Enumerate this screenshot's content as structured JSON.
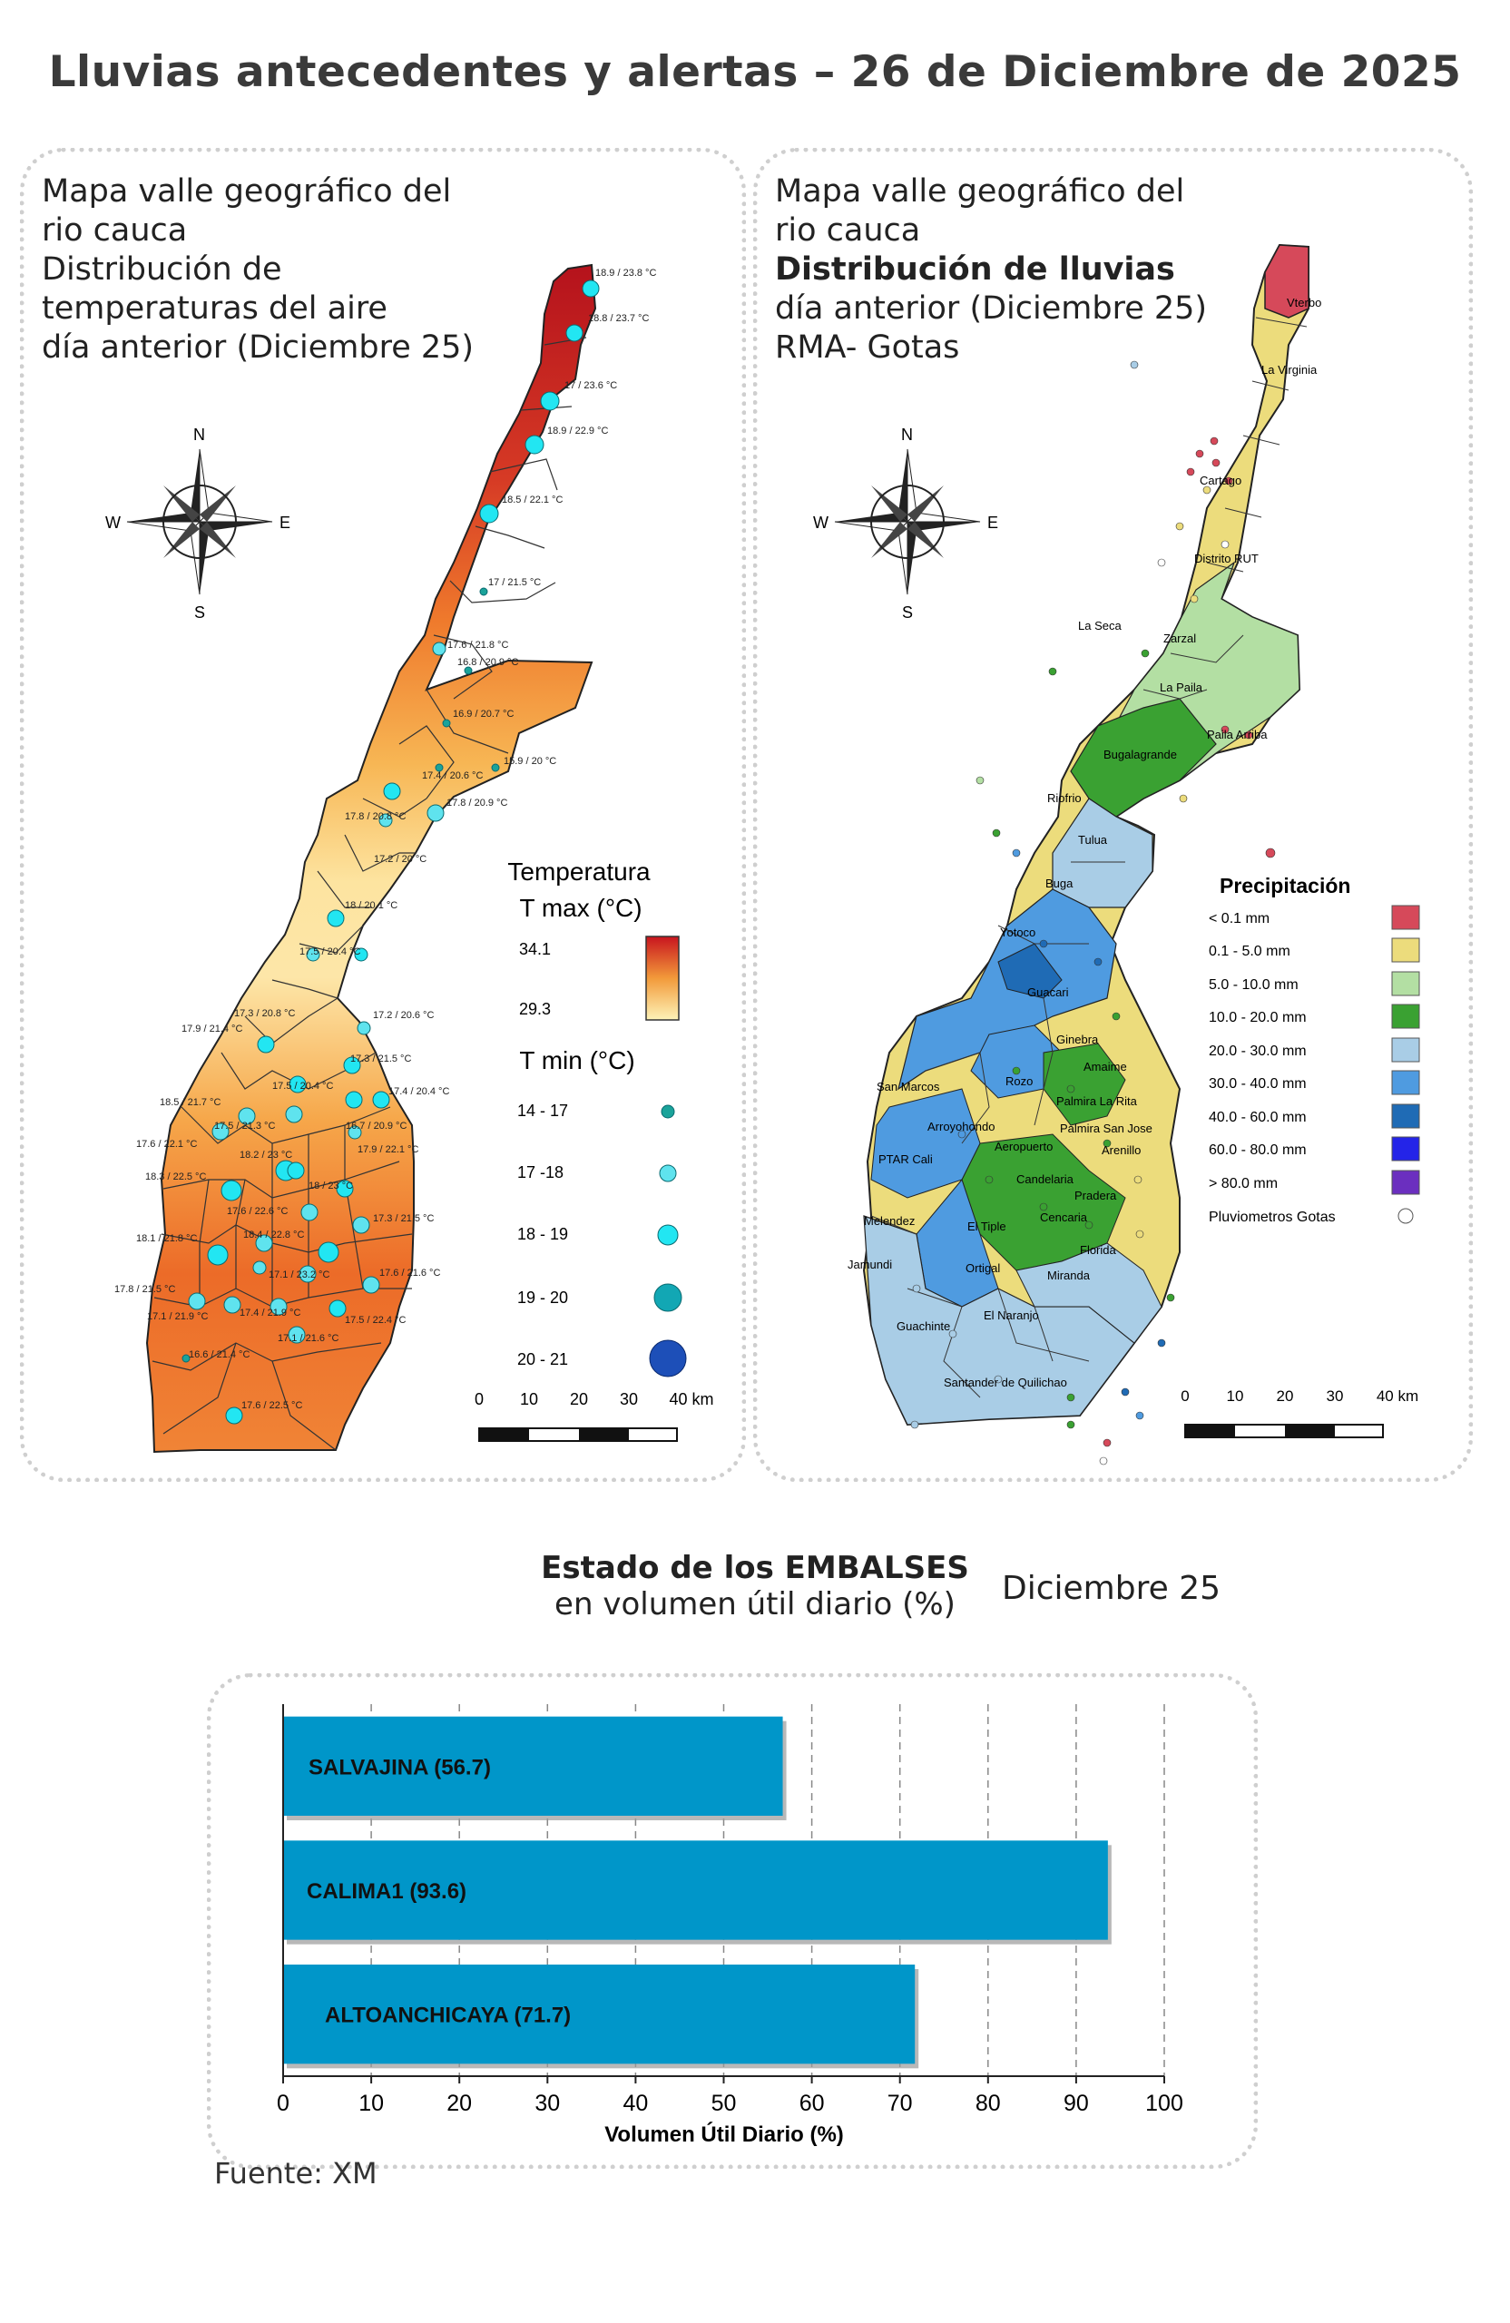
{
  "title": "Lluvias antecedentes y alertas – 26 de Diciembre de 2025",
  "temp_panel": {
    "lines": [
      "Mapa valle geográfico del",
      "rio cauca",
      "Distribución de",
      "temperaturas del aire",
      "día anterior (Diciembre 25)"
    ],
    "legend_title1": "Temperatura",
    "legend_title2": "T max (°C)",
    "tmax_high": "34.1",
    "tmax_low": "29.3",
    "tmin_title": "T min (°C)",
    "tmin_classes": [
      {
        "label": "14 - 17",
        "color": "#1aa39a"
      },
      {
        "label": "17 -18",
        "color": "#5fe3ee"
      },
      {
        "label": "18 - 19",
        "color": "#22e6f2"
      },
      {
        "label": "19 - 20",
        "color": "#12a7b4"
      },
      {
        "label": "20 - 21",
        "color": "#1d4fb8"
      }
    ],
    "scale_labels": [
      "0",
      "10",
      "20",
      "30",
      "40 km"
    ],
    "station_labels": [
      "18.9 / 23.8 °C",
      "18.8 / 23.7 °C",
      "17 / 23.6 °C",
      "18.9 / 22.9 °C",
      "18.5 / 22.1 °C",
      "17 / 21.5 °C",
      "17.6 / 21.8 °C",
      "16.8 / 20.9 °C",
      "16.9 / 20.7 °C",
      "15.9 / 20 °C",
      "17.4 / 20.6 °C",
      "17.8 / 20.9 °C",
      "17.8 / 20.8 °C",
      "17.2 / 20 °C",
      "18 / 20.1 °C",
      "17.5 / 20.4 °C",
      "17.3 / 20.8 °C",
      "17.9 / 21.4 °C",
      "17.2 / 20.6 °C",
      "17.3 / 21.5 °C",
      "17.5 / 20.4 °C",
      "17.4 / 20.4 °C",
      "18.5 / 21.7 °C",
      "17.5 / 21.3 °C",
      "16.7 / 20.9 °C",
      "17.6 / 22.1 °C",
      "18.2 / 23 °C",
      "17.9 / 22.1 °C",
      "18.3 / 22.5 °C",
      "18 / 23 °C",
      "17.6 / 22.6 °C",
      "17.3 / 21.5 °C",
      "18.1 / 21.8 °C",
      "18.4 / 22.8 °C",
      "17.6 / 21.6 °C",
      "17.1 / 23.2 °C",
      "17.8 / 21.5 °C",
      "17.4 / 21.9 °C",
      "17.5 / 22.4 °C",
      "17.1 / 21.9 °C",
      "17.1 / 21.6 °C",
      "16.6 / 21.4 °C",
      "17.6 / 22.5 °C"
    ]
  },
  "rain_panel": {
    "line1": "Mapa valle geográfico del",
    "line2": "rio cauca",
    "line3": "Distribución de lluvias",
    "line4": "día anterior (Diciembre 25)",
    "line5": "RMA- Gotas",
    "legend_title": "Precipitación",
    "classes": [
      {
        "label": "< 0.1 mm",
        "color": "#d6495a"
      },
      {
        "label": "0.1 - 5.0 mm",
        "color": "#ecdc7c"
      },
      {
        "label": "5.0 - 10.0 mm",
        "color": "#b3dfa3"
      },
      {
        "label": "10.0 - 20.0 mm",
        "color": "#3aa132"
      },
      {
        "label": "20.0 - 30.0 mm",
        "color": "#a9cde6"
      },
      {
        "label": "30.0 - 40.0 mm",
        "color": "#4f9be0"
      },
      {
        "label": "40.0 - 60.0 mm",
        "color": "#1f6bb5"
      },
      {
        "label": "60.0 - 80.0 mm",
        "color": "#2424e8"
      },
      {
        "label": "> 80.0 mm",
        "color": "#6b2fbf"
      }
    ],
    "gauges_label": "Pluviometros Gotas",
    "scale_labels": [
      "0",
      "10",
      "20",
      "30",
      "40 km"
    ],
    "places": [
      "Vterbo",
      "La Virginia",
      "Cartago",
      "Distrito RUT",
      "La Seca",
      "Zarzal",
      "La Paila",
      "Paila Arriba",
      "Bugalagrande",
      "Riofrio",
      "Tulua",
      "Buga",
      "Yotoco",
      "Guacari",
      "Ginebra",
      "Amaime",
      "Rozo",
      "Palmira La Rita",
      "Palmira San Jose",
      "San Marcos",
      "Arroyohondo",
      "Aeropuerto",
      "Arenillo",
      "PTAR Cali",
      "Candelaria",
      "Pradera",
      "Melendez",
      "El Tiple",
      "Cencaria",
      "Florida",
      "Jamundi",
      "Ortigal",
      "Miranda",
      "El Naranjo",
      "Guachinte",
      "Santander de Quilichao"
    ]
  },
  "compass": {
    "n": "N",
    "s": "S",
    "e": "E",
    "w": "W"
  },
  "reservoirs": {
    "title": "Estado de los EMBALSES",
    "subtitle": "en volumen útil diario (%)",
    "date": "Diciembre 25",
    "source": "Fuente: XM",
    "chart_data": {
      "type": "bar",
      "orientation": "horizontal",
      "categories": [
        "SALVAJINA (56.7)",
        "CALIMA1 (93.6)",
        "ALTOANCHICAYA (71.7)"
      ],
      "values": [
        56.7,
        93.6,
        71.7
      ],
      "xlabel": "Volumen Útil Diario (%)",
      "xlim": [
        0,
        100
      ],
      "xticks": [
        "0",
        "10",
        "20",
        "30",
        "40",
        "50",
        "60",
        "70",
        "80",
        "90",
        "100"
      ],
      "bar_color": "#0096c9",
      "grid": "vertical dashed"
    }
  }
}
